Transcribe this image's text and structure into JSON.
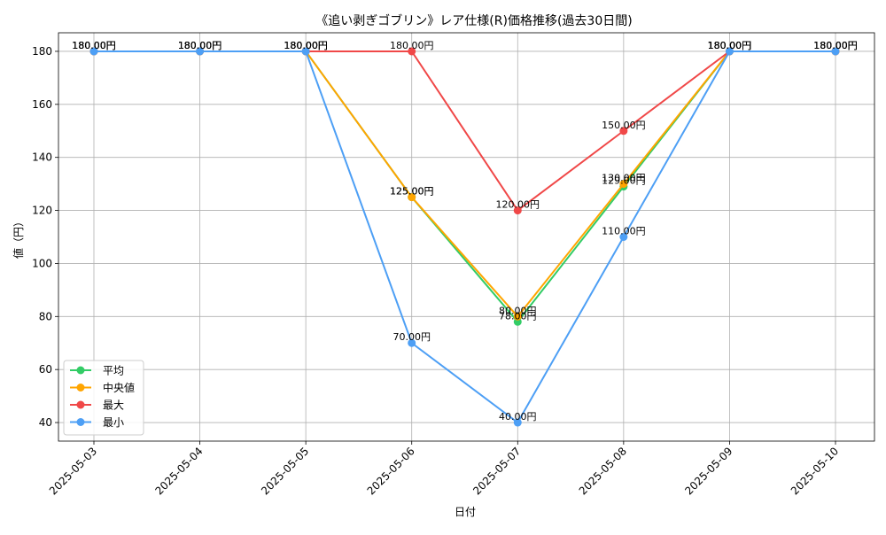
{
  "chart_data": {
    "type": "line",
    "title": "《追い剥ぎゴブリン》レア仕様(R)価格推移(過去30日間)",
    "xlabel": "日付",
    "ylabel": "値（円）",
    "categories": [
      "2025-05-03",
      "2025-05-04",
      "2025-05-05",
      "2025-05-06",
      "2025-05-07",
      "2025-05-08",
      "2025-05-09",
      "2025-05-10"
    ],
    "ylim": [
      33,
      187
    ],
    "yticks": [
      40,
      60,
      80,
      100,
      120,
      140,
      160,
      180
    ],
    "grid": true,
    "legend_position": "lower-left",
    "series": [
      {
        "name": "平均",
        "color": "#33cc66",
        "values": [
          180,
          180,
          180,
          125,
          78,
          129,
          180,
          180
        ],
        "labels": [
          "180.00円",
          "180.00円",
          "180.00円",
          "125.00円",
          "78.00円",
          "129.00円",
          "180.00円",
          "180.00円"
        ]
      },
      {
        "name": "中央値",
        "color": "#ffa500",
        "values": [
          180,
          180,
          180,
          125,
          80,
          130,
          180,
          180
        ],
        "labels": [
          "180.00円",
          "180.00円",
          "180.00円",
          "125.00円",
          "80.00円",
          "130.00円",
          "180.00円",
          "180.00円"
        ]
      },
      {
        "name": "最大",
        "color": "#f04848",
        "values": [
          180,
          180,
          180,
          180,
          120,
          150,
          180,
          180
        ],
        "labels": [
          "180.00円",
          "180.00円",
          "180.00円",
          "180.00円",
          "120.00円",
          "150.00円",
          "180.00円",
          "180.00円"
        ]
      },
      {
        "name": "最小",
        "color": "#4d9ff5",
        "values": [
          180,
          180,
          180,
          70,
          40,
          110,
          180,
          180
        ],
        "labels": [
          "180.00円",
          "180.00円",
          "180.00円",
          "70.00円",
          "40.00円",
          "110.00円",
          "180.00円",
          "180.00円"
        ]
      }
    ]
  }
}
